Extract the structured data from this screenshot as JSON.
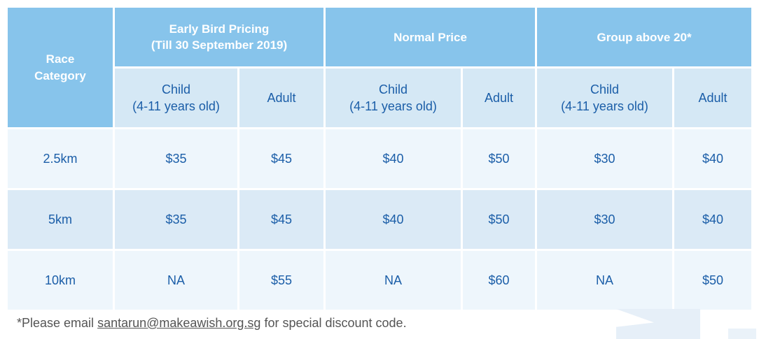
{
  "header": {
    "race_category": "Race Category",
    "groups": [
      {
        "line1": "Early Bird Pricing",
        "line2": "(Till 30 September 2019)"
      },
      {
        "line1": "Normal Price",
        "line2": ""
      },
      {
        "line1": "Group above 20*",
        "line2": ""
      }
    ],
    "child_label": "Child",
    "child_age": "(4-11 years old)",
    "adult_label": "Adult"
  },
  "rows": [
    {
      "category": "2.5km",
      "prices": [
        "$35",
        "$45",
        "$40",
        "$50",
        "$30",
        "$40"
      ]
    },
    {
      "category": "5km",
      "prices": [
        "$35",
        "$45",
        "$40",
        "$50",
        "$30",
        "$40"
      ]
    },
    {
      "category": "10km",
      "prices": [
        "NA",
        "$55",
        "NA",
        "$60",
        "NA",
        "$50"
      ]
    }
  ],
  "footnote": {
    "before": "*Please email ",
    "email": "santarun@makeawish.org.sg",
    "after": " for special discount code."
  },
  "colors": {
    "header_bg": "#87c4eb",
    "subheader_bg": "#d5e8f5",
    "row_light": "#eef6fc",
    "row_mid": "#dbeaf6",
    "text_blue": "#1b5ea8"
  }
}
